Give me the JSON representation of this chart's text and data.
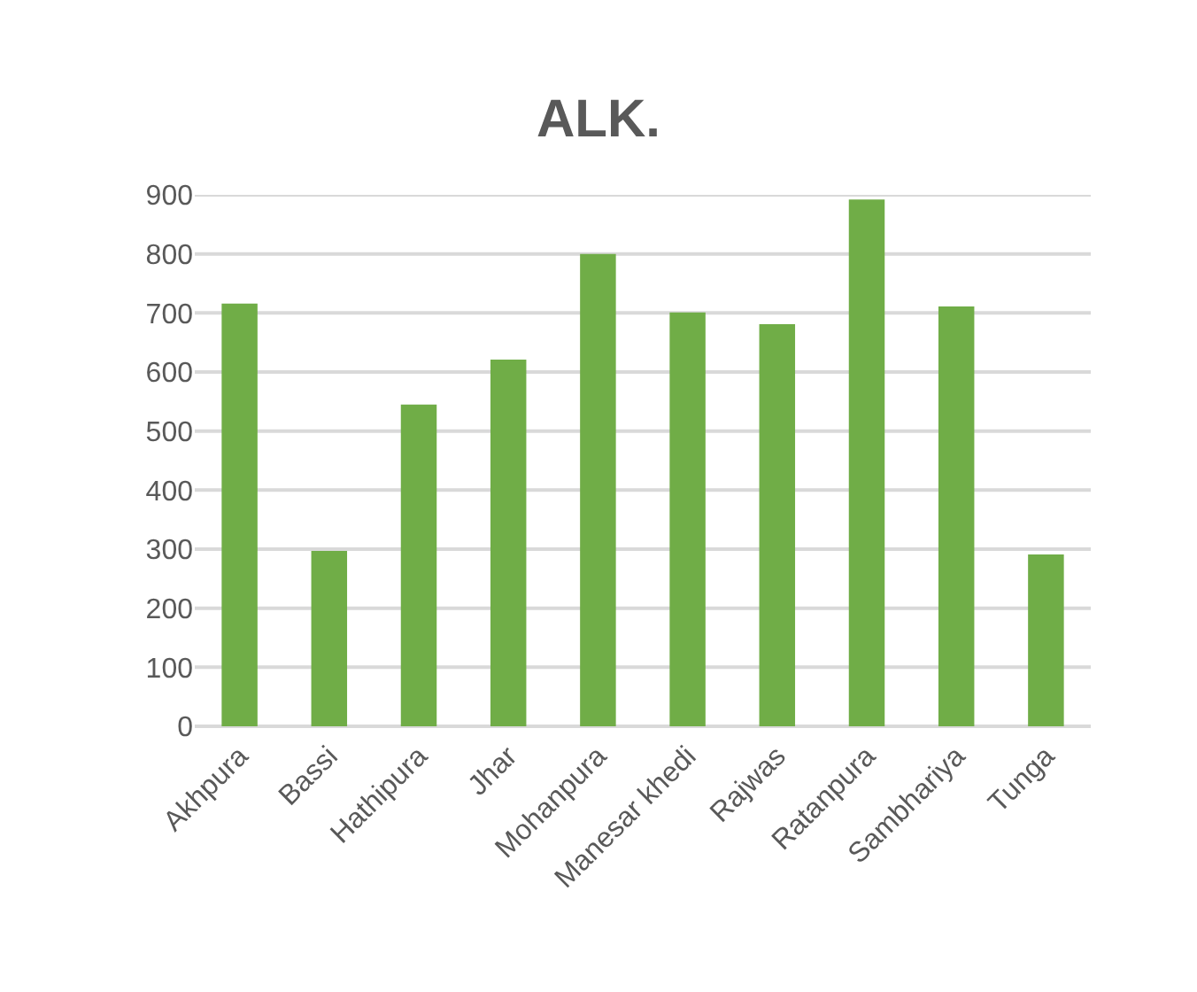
{
  "chart_data": {
    "type": "bar",
    "title": "ALK.",
    "categories": [
      "Akhpura",
      "Bassi",
      "Hathipura",
      "Jhar",
      "Mohanpura",
      "Manesar khedi",
      "Rajwas",
      "Ratanpura",
      "Sambhariya",
      "Tunga"
    ],
    "values": [
      716,
      297,
      545,
      621,
      800,
      701,
      681,
      892,
      711,
      291
    ],
    "color": "#70ad47",
    "ylim": [
      0,
      900
    ],
    "yticks": [
      0,
      100,
      200,
      300,
      400,
      500,
      600,
      700,
      800,
      900
    ],
    "grid": "y"
  }
}
